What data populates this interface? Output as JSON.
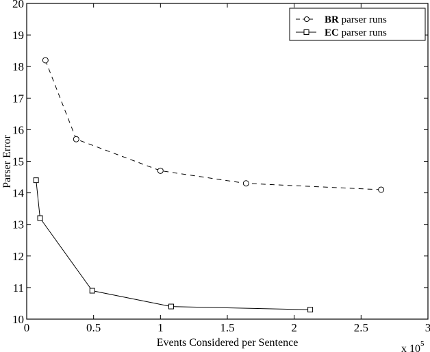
{
  "chart_data": {
    "type": "line",
    "title": "",
    "xlabel": "Events Considered per Sentence",
    "ylabel": "Parser Error",
    "x_multiplier_label": "x 10",
    "x_multiplier_exponent": "5",
    "xlim": [
      0,
      3
    ],
    "ylim": [
      10,
      20
    ],
    "x_ticks": [
      0,
      0.5,
      1,
      1.5,
      2,
      2.5,
      3
    ],
    "x_tick_labels": [
      "0",
      "0.5",
      "1",
      "1.5",
      "2",
      "2.5",
      "3"
    ],
    "y_ticks": [
      10,
      11,
      12,
      13,
      14,
      15,
      16,
      17,
      18,
      19,
      20
    ],
    "y_tick_labels": [
      "10",
      "11",
      "12",
      "13",
      "14",
      "15",
      "16",
      "17",
      "18",
      "19",
      "20"
    ],
    "grid": false,
    "legend_position": "upper right",
    "series": [
      {
        "name": "BR parser runs",
        "legend_bold": "BR",
        "legend_rest": " parser runs",
        "marker": "circle",
        "line_style": "dashed",
        "x": [
          0.14,
          0.37,
          1.0,
          1.64,
          2.65
        ],
        "y": [
          18.2,
          15.7,
          14.7,
          14.3,
          14.1
        ]
      },
      {
        "name": "EC parser runs",
        "legend_bold": "EC",
        "legend_rest": " parser runs",
        "marker": "square",
        "line_style": "solid",
        "x": [
          0.07,
          0.1,
          0.49,
          1.08,
          2.12
        ],
        "y": [
          14.4,
          13.2,
          10.9,
          10.4,
          10.3
        ]
      }
    ]
  }
}
